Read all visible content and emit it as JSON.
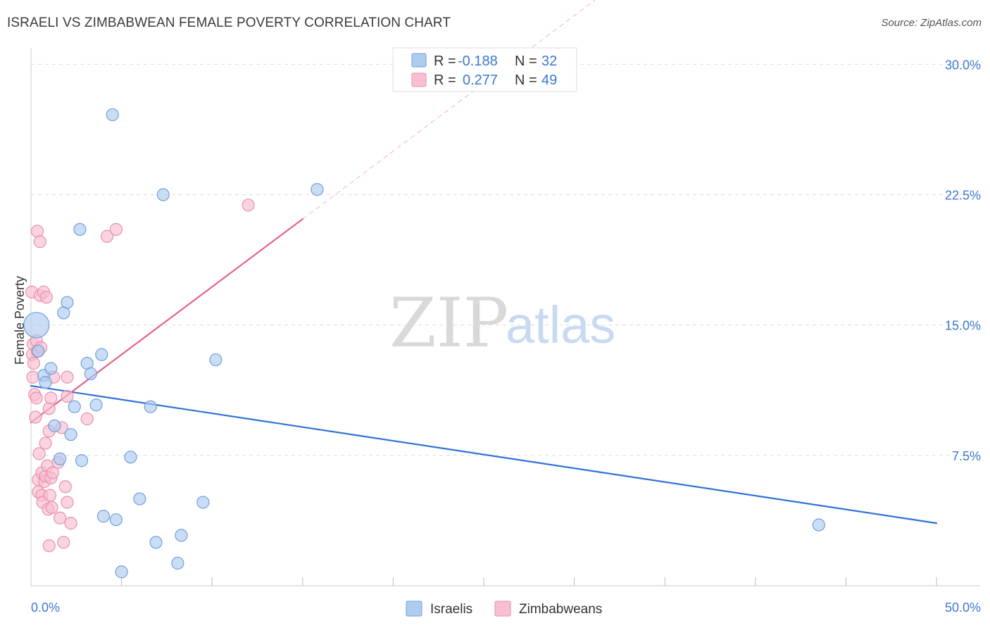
{
  "header": {
    "title": "ISRAELI VS ZIMBABWEAN FEMALE POVERTY CORRELATION CHART",
    "source": "Source: ZipAtlas.com"
  },
  "watermark": {
    "zip": "ZIP",
    "atlas": "atlas"
  },
  "colors": {
    "israelis_fill": "#aecbf0",
    "israelis_stroke": "#6f9fde",
    "israelis_line": "#2f72d6",
    "zimbabweans_fill": "#f7bfd0",
    "zimbabweans_stroke": "#ea8fac",
    "zimbabweans_line": "#e5628c",
    "tick_label": "#3b78d0",
    "grid": "#dddddd"
  },
  "stats_legend": [
    {
      "r_label": "R =",
      "r_value": "-0.188",
      "n_label": "N =",
      "n_value": "32"
    },
    {
      "r_label": "R =",
      "r_value": "0.277",
      "n_label": "N =",
      "n_value": "49"
    }
  ],
  "chart_data": {
    "type": "scatter",
    "title": "ISRAELI VS ZIMBABWEAN FEMALE POVERTY CORRELATION CHART",
    "xlabel": "",
    "ylabel": "Female Poverty",
    "xlim": [
      0,
      50
    ],
    "ylim": [
      0,
      30.5
    ],
    "x_tick_labels": [
      "0.0%",
      "50.0%"
    ],
    "y_ticks": [
      7.5,
      15.0,
      22.5,
      30.0
    ],
    "y_tick_labels": [
      "7.5%",
      "15.0%",
      "22.5%",
      "30.0%"
    ],
    "grid": true,
    "legend_position": "bottom",
    "series": [
      {
        "name": "Israelis",
        "color": "#aecbf0",
        "points": [
          [
            0.3,
            15.0
          ],
          [
            0.4,
            13.5
          ],
          [
            0.7,
            12.1
          ],
          [
            0.8,
            11.7
          ],
          [
            1.1,
            12.5
          ],
          [
            1.3,
            9.2
          ],
          [
            1.6,
            7.3
          ],
          [
            1.8,
            15.7
          ],
          [
            2.0,
            16.3
          ],
          [
            2.2,
            8.7
          ],
          [
            2.4,
            10.3
          ],
          [
            2.7,
            20.5
          ],
          [
            2.8,
            7.2
          ],
          [
            3.1,
            12.8
          ],
          [
            3.3,
            12.2
          ],
          [
            3.6,
            10.4
          ],
          [
            3.9,
            13.3
          ],
          [
            4.0,
            4.0
          ],
          [
            4.5,
            27.1
          ],
          [
            4.7,
            3.8
          ],
          [
            5.0,
            0.8
          ],
          [
            5.5,
            7.4
          ],
          [
            6.0,
            5.0
          ],
          [
            6.6,
            10.3
          ],
          [
            6.9,
            2.5
          ],
          [
            7.3,
            22.5
          ],
          [
            8.1,
            1.3
          ],
          [
            8.3,
            2.9
          ],
          [
            9.5,
            4.8
          ],
          [
            10.2,
            13.0
          ],
          [
            15.8,
            22.8
          ],
          [
            43.5,
            3.5
          ]
        ]
      },
      {
        "name": "Zimbabweans",
        "color": "#f7bfd0",
        "points": [
          [
            0.05,
            16.9
          ],
          [
            0.08,
            13.3
          ],
          [
            0.1,
            12.0
          ],
          [
            0.12,
            13.9
          ],
          [
            0.15,
            12.8
          ],
          [
            0.2,
            11.0
          ],
          [
            0.25,
            9.7
          ],
          [
            0.3,
            10.8
          ],
          [
            0.3,
            14.1
          ],
          [
            0.35,
            13.5
          ],
          [
            0.35,
            20.4
          ],
          [
            0.4,
            6.1
          ],
          [
            0.4,
            5.4
          ],
          [
            0.45,
            7.6
          ],
          [
            0.5,
            16.7
          ],
          [
            0.5,
            19.8
          ],
          [
            0.55,
            13.7
          ],
          [
            0.6,
            6.5
          ],
          [
            0.6,
            5.2
          ],
          [
            0.65,
            4.8
          ],
          [
            0.7,
            16.9
          ],
          [
            0.75,
            6.0
          ],
          [
            0.8,
            6.3
          ],
          [
            0.8,
            8.2
          ],
          [
            0.85,
            16.6
          ],
          [
            0.9,
            6.9
          ],
          [
            0.95,
            4.4
          ],
          [
            1.0,
            8.9
          ],
          [
            1.0,
            10.2
          ],
          [
            1.0,
            2.3
          ],
          [
            1.05,
            5.2
          ],
          [
            1.1,
            6.2
          ],
          [
            1.1,
            10.8
          ],
          [
            1.15,
            4.5
          ],
          [
            1.2,
            6.5
          ],
          [
            1.25,
            12.0
          ],
          [
            1.5,
            7.1
          ],
          [
            1.6,
            3.9
          ],
          [
            1.7,
            9.1
          ],
          [
            1.8,
            2.5
          ],
          [
            1.9,
            5.7
          ],
          [
            2.0,
            4.8
          ],
          [
            2.0,
            12.0
          ],
          [
            2.0,
            10.9
          ],
          [
            2.2,
            3.6
          ],
          [
            3.1,
            9.6
          ],
          [
            4.2,
            20.1
          ],
          [
            4.7,
            20.5
          ],
          [
            12.0,
            21.9
          ]
        ]
      }
    ],
    "trend_lines": [
      {
        "series": "Israelis",
        "x": [
          0,
          50
        ],
        "y": [
          11.5,
          3.6
        ],
        "style": "solid"
      },
      {
        "series": "Zimbabweans",
        "x": [
          0,
          15
        ],
        "y": [
          9.4,
          21.1
        ],
        "style": "solid"
      },
      {
        "series": "Zimbabweans",
        "x": [
          15,
          50
        ],
        "y": [
          21.1,
          48.4
        ],
        "style": "dashed"
      }
    ]
  },
  "bottom_legend": [
    {
      "label": "Israelis"
    },
    {
      "label": "Zimbabweans"
    }
  ]
}
